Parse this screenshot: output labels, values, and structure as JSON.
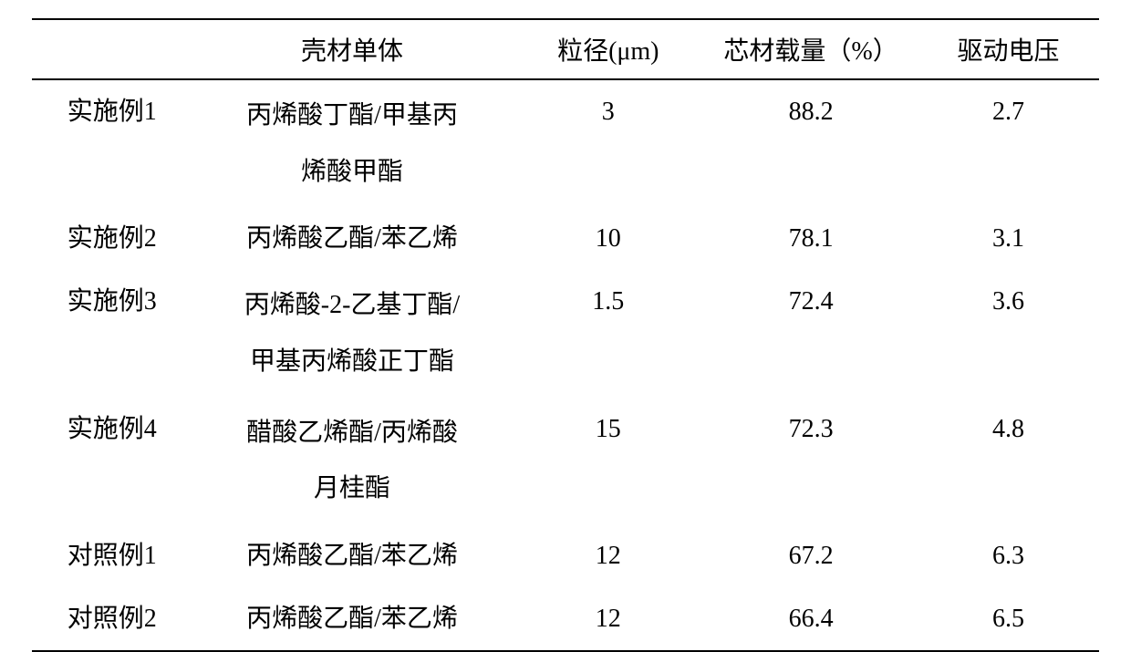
{
  "table": {
    "type": "table",
    "background_color": "#ffffff",
    "text_color": "#000000",
    "border_color": "#000000",
    "border_width": 2,
    "font_size": 28,
    "font_family": "SimSun",
    "columns": [
      {
        "header": "",
        "width": "15%",
        "align": "center"
      },
      {
        "header": "壳材单体",
        "width": "30%",
        "align": "center"
      },
      {
        "header": "粒径(μm)",
        "width": "18%",
        "align": "center"
      },
      {
        "header": "芯材载量（%）",
        "width": "20%",
        "align": "center"
      },
      {
        "header": "驱动电压",
        "width": "17%",
        "align": "center"
      }
    ],
    "rows": [
      {
        "label": "实施例1",
        "shell_monomer_line1": "丙烯酸丁酯/甲基丙",
        "shell_monomer_line2": "烯酸甲酯",
        "particle_size": "3",
        "core_loading": "88.2",
        "driving_voltage": "2.7"
      },
      {
        "label": "实施例2",
        "shell_monomer_line1": "丙烯酸乙酯/苯乙烯",
        "shell_monomer_line2": "",
        "particle_size": "10",
        "core_loading": "78.1",
        "driving_voltage": "3.1"
      },
      {
        "label": "实施例3",
        "shell_monomer_line1": "丙烯酸-2-乙基丁酯/",
        "shell_monomer_line2": "甲基丙烯酸正丁酯",
        "particle_size": "1.5",
        "core_loading": "72.4",
        "driving_voltage": "3.6"
      },
      {
        "label": "实施例4",
        "shell_monomer_line1": "醋酸乙烯酯/丙烯酸",
        "shell_monomer_line2": "月桂酯",
        "particle_size": "15",
        "core_loading": "72.3",
        "driving_voltage": "4.8"
      },
      {
        "label": "对照例1",
        "shell_monomer_line1": "丙烯酸乙酯/苯乙烯",
        "shell_monomer_line2": "",
        "particle_size": "12",
        "core_loading": "67.2",
        "driving_voltage": "6.3"
      },
      {
        "label": "对照例2",
        "shell_monomer_line1": "丙烯酸乙酯/苯乙烯",
        "shell_monomer_line2": "",
        "particle_size": "12",
        "core_loading": "66.4",
        "driving_voltage": "6.5"
      }
    ]
  }
}
